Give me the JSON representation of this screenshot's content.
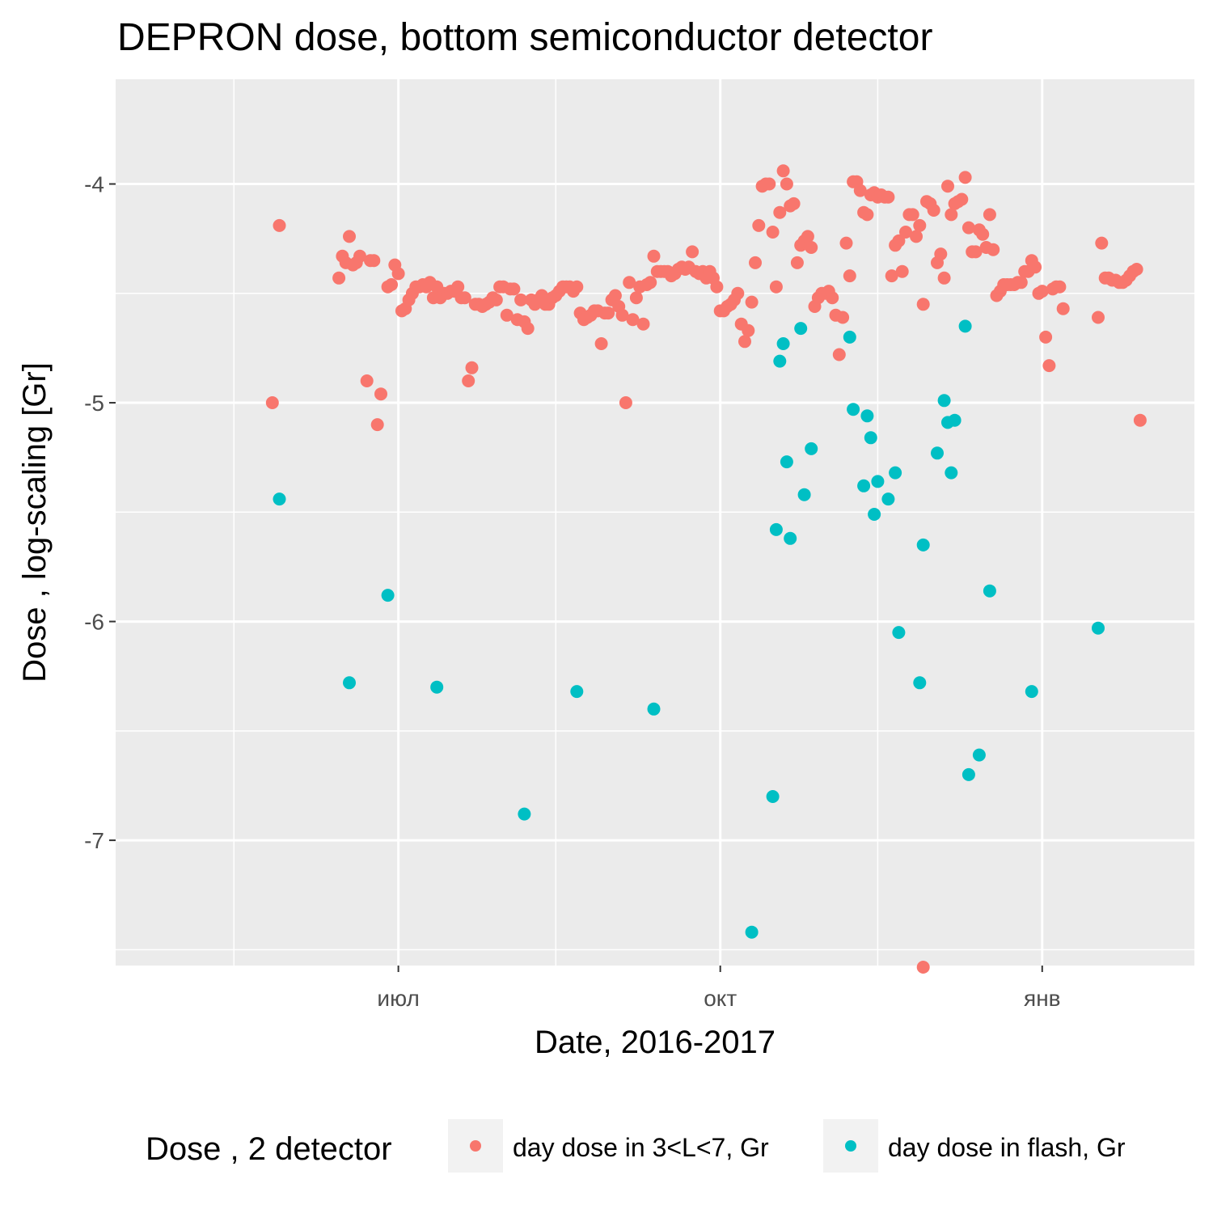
{
  "chart_data": {
    "type": "scatter",
    "title": "DEPRON dose, bottom semiconductor detector",
    "xlabel": "Date, 2016-2017",
    "ylabel": "Dose , log-scaling [Gr]",
    "x_type": "date",
    "xlim": [
      "2016-05-02",
      "2017-01-20"
    ],
    "ylim": [
      -7.58,
      -3.78
    ],
    "x_ticks": [
      {
        "date": "2016-07-01",
        "label": "июл"
      },
      {
        "date": "2016-10-01",
        "label": "окт"
      },
      {
        "date": "2017-01-01",
        "label": "янв"
      }
    ],
    "x_minor_ticks": [
      "2016-05-15",
      "2016-08-15",
      "2016-11-15"
    ],
    "y_ticks": [
      -7,
      -6,
      -5,
      -4
    ],
    "y_minor_ticks": [
      -7.5,
      -6.5,
      -5.5,
      -4.5
    ],
    "grid": true,
    "legend": {
      "title": "Dose , 2 detector",
      "position": "bottom"
    },
    "series": [
      {
        "name": "day dose in 3<L<7,  Gr",
        "color": "#F8766D",
        "points": [
          [
            "2016-05-26",
            -5.0
          ],
          [
            "2016-05-28",
            -4.19
          ],
          [
            "2016-06-14",
            -4.43
          ],
          [
            "2016-06-15",
            -4.33
          ],
          [
            "2016-06-16",
            -4.36
          ],
          [
            "2016-06-17",
            -4.24
          ],
          [
            "2016-06-18",
            -4.37
          ],
          [
            "2016-06-19",
            -4.36
          ],
          [
            "2016-06-20",
            -4.33
          ],
          [
            "2016-06-22",
            -4.9
          ],
          [
            "2016-06-23",
            -4.35
          ],
          [
            "2016-06-24",
            -4.35
          ],
          [
            "2016-06-25",
            -5.1
          ],
          [
            "2016-06-26",
            -4.96
          ],
          [
            "2016-06-28",
            -4.47
          ],
          [
            "2016-06-29",
            -4.46
          ],
          [
            "2016-06-30",
            -4.37
          ],
          [
            "2016-07-01",
            -4.41
          ],
          [
            "2016-07-02",
            -4.58
          ],
          [
            "2016-07-03",
            -4.57
          ],
          [
            "2016-07-04",
            -4.53
          ],
          [
            "2016-07-05",
            -4.5
          ],
          [
            "2016-07-06",
            -4.47
          ],
          [
            "2016-07-07",
            -4.47
          ],
          [
            "2016-07-08",
            -4.46
          ],
          [
            "2016-07-09",
            -4.47
          ],
          [
            "2016-07-10",
            -4.45
          ],
          [
            "2016-07-11",
            -4.52
          ],
          [
            "2016-07-12",
            -4.47
          ],
          [
            "2016-07-13",
            -4.52
          ],
          [
            "2016-07-14",
            -4.5
          ],
          [
            "2016-07-15",
            -4.5
          ],
          [
            "2016-07-16",
            -4.49
          ],
          [
            "2016-07-17",
            -4.49
          ],
          [
            "2016-07-18",
            -4.47
          ],
          [
            "2016-07-19",
            -4.52
          ],
          [
            "2016-07-20",
            -4.52
          ],
          [
            "2016-07-21",
            -4.9
          ],
          [
            "2016-07-22",
            -4.84
          ],
          [
            "2016-07-23",
            -4.55
          ],
          [
            "2016-07-24",
            -4.55
          ],
          [
            "2016-07-25",
            -4.56
          ],
          [
            "2016-07-26",
            -4.55
          ],
          [
            "2016-07-27",
            -4.54
          ],
          [
            "2016-07-28",
            -4.52
          ],
          [
            "2016-07-29",
            -4.53
          ],
          [
            "2016-07-30",
            -4.47
          ],
          [
            "2016-07-31",
            -4.47
          ],
          [
            "2016-08-01",
            -4.6
          ],
          [
            "2016-08-02",
            -4.48
          ],
          [
            "2016-08-03",
            -4.48
          ],
          [
            "2016-08-04",
            -4.62
          ],
          [
            "2016-08-05",
            -4.53
          ],
          [
            "2016-08-06",
            -4.63
          ],
          [
            "2016-08-07",
            -4.66
          ],
          [
            "2016-08-08",
            -4.53
          ],
          [
            "2016-08-09",
            -4.55
          ],
          [
            "2016-08-10",
            -4.53
          ],
          [
            "2016-08-11",
            -4.51
          ],
          [
            "2016-08-12",
            -4.55
          ],
          [
            "2016-08-13",
            -4.55
          ],
          [
            "2016-08-14",
            -4.52
          ],
          [
            "2016-08-15",
            -4.51
          ],
          [
            "2016-08-16",
            -4.49
          ],
          [
            "2016-08-17",
            -4.47
          ],
          [
            "2016-08-18",
            -4.47
          ],
          [
            "2016-08-19",
            -4.47
          ],
          [
            "2016-08-20",
            -4.49
          ],
          [
            "2016-08-21",
            -4.47
          ],
          [
            "2016-08-22",
            -4.59
          ],
          [
            "2016-08-23",
            -4.62
          ],
          [
            "2016-08-24",
            -4.61
          ],
          [
            "2016-08-25",
            -4.6
          ],
          [
            "2016-08-26",
            -4.58
          ],
          [
            "2016-08-27",
            -4.58
          ],
          [
            "2016-08-28",
            -4.73
          ],
          [
            "2016-08-29",
            -4.59
          ],
          [
            "2016-08-30",
            -4.59
          ],
          [
            "2016-08-31",
            -4.53
          ],
          [
            "2016-09-01",
            -4.51
          ],
          [
            "2016-09-02",
            -4.56
          ],
          [
            "2016-09-03",
            -4.6
          ],
          [
            "2016-09-04",
            -5.0
          ],
          [
            "2016-09-05",
            -4.45
          ],
          [
            "2016-09-06",
            -4.62
          ],
          [
            "2016-09-07",
            -4.52
          ],
          [
            "2016-09-08",
            -4.47
          ],
          [
            "2016-09-09",
            -4.64
          ],
          [
            "2016-09-10",
            -4.46
          ],
          [
            "2016-09-11",
            -4.45
          ],
          [
            "2016-09-12",
            -4.33
          ],
          [
            "2016-09-13",
            -4.4
          ],
          [
            "2016-09-14",
            -4.4
          ],
          [
            "2016-09-15",
            -4.4
          ],
          [
            "2016-09-16",
            -4.4
          ],
          [
            "2016-09-17",
            -4.42
          ],
          [
            "2016-09-18",
            -4.41
          ],
          [
            "2016-09-19",
            -4.39
          ],
          [
            "2016-09-20",
            -4.38
          ],
          [
            "2016-09-21",
            -4.39
          ],
          [
            "2016-09-22",
            -4.38
          ],
          [
            "2016-09-23",
            -4.31
          ],
          [
            "2016-09-24",
            -4.4
          ],
          [
            "2016-09-25",
            -4.41
          ],
          [
            "2016-09-26",
            -4.4
          ],
          [
            "2016-09-27",
            -4.43
          ],
          [
            "2016-09-28",
            -4.4
          ],
          [
            "2016-09-29",
            -4.43
          ],
          [
            "2016-09-30",
            -4.47
          ],
          [
            "2016-10-01",
            -4.58
          ],
          [
            "2016-10-02",
            -4.58
          ],
          [
            "2016-10-03",
            -4.56
          ],
          [
            "2016-10-04",
            -4.55
          ],
          [
            "2016-10-05",
            -4.53
          ],
          [
            "2016-10-06",
            -4.5
          ],
          [
            "2016-10-07",
            -4.64
          ],
          [
            "2016-10-08",
            -4.72
          ],
          [
            "2016-10-09",
            -4.67
          ],
          [
            "2016-10-10",
            -4.54
          ],
          [
            "2016-10-11",
            -4.36
          ],
          [
            "2016-10-12",
            -4.19
          ],
          [
            "2016-10-13",
            -4.01
          ],
          [
            "2016-10-14",
            -4.0
          ],
          [
            "2016-10-15",
            -4.0
          ],
          [
            "2016-10-16",
            -4.22
          ],
          [
            "2016-10-17",
            -4.47
          ],
          [
            "2016-10-18",
            -4.13
          ],
          [
            "2016-10-19",
            -3.94
          ],
          [
            "2016-10-20",
            -4.0
          ],
          [
            "2016-10-21",
            -4.1
          ],
          [
            "2016-10-22",
            -4.09
          ],
          [
            "2016-10-23",
            -4.36
          ],
          [
            "2016-10-24",
            -4.28
          ],
          [
            "2016-10-25",
            -4.26
          ],
          [
            "2016-10-26",
            -4.24
          ],
          [
            "2016-10-27",
            -4.29
          ],
          [
            "2016-10-28",
            -4.56
          ],
          [
            "2016-10-29",
            -4.52
          ],
          [
            "2016-10-30",
            -4.5
          ],
          [
            "2016-10-31",
            -4.5
          ],
          [
            "2016-11-01",
            -4.49
          ],
          [
            "2016-11-02",
            -4.52
          ],
          [
            "2016-11-03",
            -4.6
          ],
          [
            "2016-11-04",
            -4.78
          ],
          [
            "2016-11-05",
            -4.61
          ],
          [
            "2016-11-06",
            -4.27
          ],
          [
            "2016-11-07",
            -4.42
          ],
          [
            "2016-11-08",
            -3.99
          ],
          [
            "2016-11-09",
            -3.99
          ],
          [
            "2016-11-10",
            -4.03
          ],
          [
            "2016-11-11",
            -4.13
          ],
          [
            "2016-11-12",
            -4.14
          ],
          [
            "2016-11-13",
            -4.05
          ],
          [
            "2016-11-14",
            -4.04
          ],
          [
            "2016-11-15",
            -4.06
          ],
          [
            "2016-11-16",
            -4.05
          ],
          [
            "2016-11-17",
            -4.06
          ],
          [
            "2016-11-18",
            -4.06
          ],
          [
            "2016-11-19",
            -4.42
          ],
          [
            "2016-11-20",
            -4.28
          ],
          [
            "2016-11-21",
            -4.26
          ],
          [
            "2016-11-22",
            -4.4
          ],
          [
            "2016-11-23",
            -4.22
          ],
          [
            "2016-11-24",
            -4.14
          ],
          [
            "2016-11-25",
            -4.14
          ],
          [
            "2016-11-26",
            -4.24
          ],
          [
            "2016-11-27",
            -4.19
          ],
          [
            "2016-11-28",
            -4.55
          ],
          [
            "2016-11-29",
            -4.08
          ],
          [
            "2016-11-30",
            -4.09
          ],
          [
            "2016-12-01",
            -4.12
          ],
          [
            "2016-12-02",
            -4.36
          ],
          [
            "2016-12-03",
            -4.32
          ],
          [
            "2016-12-04",
            -4.43
          ],
          [
            "2016-12-05",
            -4.01
          ],
          [
            "2016-12-06",
            -4.14
          ],
          [
            "2016-12-07",
            -4.09
          ],
          [
            "2016-12-08",
            -4.08
          ],
          [
            "2016-12-09",
            -4.07
          ],
          [
            "2016-12-10",
            -3.97
          ],
          [
            "2016-12-11",
            -4.2
          ],
          [
            "2016-12-12",
            -4.31
          ],
          [
            "2016-12-13",
            -4.31
          ],
          [
            "2016-12-14",
            -4.21
          ],
          [
            "2016-12-15",
            -4.23
          ],
          [
            "2016-12-16",
            -4.29
          ],
          [
            "2016-12-17",
            -4.14
          ],
          [
            "2016-12-18",
            -4.3
          ],
          [
            "2016-12-19",
            -4.51
          ],
          [
            "2016-12-20",
            -4.49
          ],
          [
            "2016-12-21",
            -4.46
          ],
          [
            "2016-12-22",
            -4.46
          ],
          [
            "2016-12-23",
            -4.46
          ],
          [
            "2016-12-24",
            -4.46
          ],
          [
            "2016-12-25",
            -4.45
          ],
          [
            "2016-12-26",
            -4.45
          ],
          [
            "2016-12-27",
            -4.4
          ],
          [
            "2016-12-28",
            -4.4
          ],
          [
            "2016-12-29",
            -4.35
          ],
          [
            "2016-12-30",
            -4.38
          ],
          [
            "2016-12-31",
            -4.5
          ],
          [
            "2017-01-01",
            -4.49
          ],
          [
            "2017-01-02",
            -4.7
          ],
          [
            "2017-01-03",
            -4.83
          ],
          [
            "2017-01-04",
            -4.48
          ],
          [
            "2017-01-05",
            -4.47
          ],
          [
            "2017-01-06",
            -4.47
          ],
          [
            "2017-01-07",
            -4.57
          ],
          [
            "2016-11-28",
            -7.58
          ],
          [
            "2017-01-17",
            -4.61
          ],
          [
            "2017-01-18",
            -4.27
          ],
          [
            "2017-01-19",
            -4.43
          ],
          [
            "2017-01-20",
            -4.43
          ],
          [
            "2017-01-21",
            -4.44
          ],
          [
            "2017-01-22",
            -4.44
          ],
          [
            "2017-01-23",
            -4.45
          ],
          [
            "2017-01-24",
            -4.45
          ],
          [
            "2017-01-25",
            -4.44
          ],
          [
            "2017-01-26",
            -4.42
          ],
          [
            "2017-01-27",
            -4.4
          ],
          [
            "2017-01-28",
            -4.39
          ],
          [
            "2017-01-29",
            -5.08
          ]
        ]
      },
      {
        "name": "day dose in flash,  Gr",
        "color": "#00BFC4",
        "points": [
          [
            "2016-05-28",
            -5.44
          ],
          [
            "2016-06-17",
            -6.28
          ],
          [
            "2016-06-28",
            -5.88
          ],
          [
            "2016-07-12",
            -6.3
          ],
          [
            "2016-08-06",
            -6.88
          ],
          [
            "2016-08-21",
            -6.32
          ],
          [
            "2016-09-12",
            -6.4
          ],
          [
            "2016-10-10",
            -7.42
          ],
          [
            "2016-10-16",
            -6.8
          ],
          [
            "2016-10-17",
            -5.58
          ],
          [
            "2016-10-18",
            -4.81
          ],
          [
            "2016-10-19",
            -4.73
          ],
          [
            "2016-10-20",
            -5.27
          ],
          [
            "2016-10-21",
            -5.62
          ],
          [
            "2016-10-24",
            -4.66
          ],
          [
            "2016-10-25",
            -5.42
          ],
          [
            "2016-10-27",
            -5.21
          ],
          [
            "2016-11-07",
            -4.7
          ],
          [
            "2016-11-08",
            -5.03
          ],
          [
            "2016-11-11",
            -5.38
          ],
          [
            "2016-11-12",
            -5.06
          ],
          [
            "2016-11-13",
            -5.16
          ],
          [
            "2016-11-14",
            -5.51
          ],
          [
            "2016-11-15",
            -5.36
          ],
          [
            "2016-11-18",
            -5.44
          ],
          [
            "2016-11-20",
            -5.32
          ],
          [
            "2016-11-21",
            -6.05
          ],
          [
            "2016-11-27",
            -6.28
          ],
          [
            "2016-11-28",
            -5.65
          ],
          [
            "2016-12-02",
            -5.23
          ],
          [
            "2016-12-04",
            -4.99
          ],
          [
            "2016-12-05",
            -5.09
          ],
          [
            "2016-12-06",
            -5.32
          ],
          [
            "2016-12-07",
            -5.08
          ],
          [
            "2016-12-10",
            -4.65
          ],
          [
            "2016-12-11",
            -6.7
          ],
          [
            "2016-12-14",
            -6.61
          ],
          [
            "2016-12-17",
            -5.86
          ],
          [
            "2016-12-29",
            -6.32
          ],
          [
            "2017-01-17",
            -6.03
          ]
        ]
      }
    ]
  }
}
